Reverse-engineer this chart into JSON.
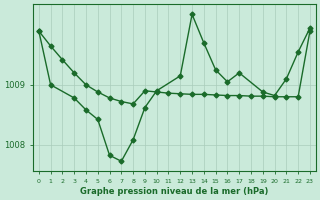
{
  "xlabel": "Graphe pression niveau de la mer (hPa)",
  "x_ticks": [
    0,
    1,
    2,
    3,
    4,
    5,
    6,
    7,
    8,
    9,
    10,
    11,
    12,
    13,
    14,
    15,
    16,
    17,
    18,
    19,
    20,
    21,
    22,
    23
  ],
  "ylim": [
    1007.55,
    1010.35
  ],
  "yticks": [
    1008,
    1009
  ],
  "background_color": "#caeada",
  "plot_bg_color": "#caeada",
  "grid_color": "#aaccbb",
  "line_color": "#1a6b2a",
  "series1_x": [
    0,
    1,
    2,
    3,
    4,
    5,
    6,
    7,
    8,
    9,
    10,
    11,
    12,
    13,
    14,
    15,
    16,
    17,
    18,
    19,
    20,
    21,
    22,
    23
  ],
  "series1_y": [
    1009.9,
    1009.65,
    1009.42,
    1009.2,
    1009.0,
    1008.88,
    1008.78,
    1008.72,
    1008.68,
    1008.9,
    1008.88,
    1008.86,
    1008.85,
    1008.84,
    1008.84,
    1008.83,
    1008.82,
    1008.82,
    1008.81,
    1008.81,
    1008.8,
    1008.8,
    1008.8,
    1009.9
  ],
  "series2_x": [
    0,
    1,
    3,
    4,
    5,
    6,
    7,
    8,
    9,
    10,
    12,
    13,
    14,
    15,
    16,
    17,
    19,
    20,
    21,
    22,
    23
  ],
  "series2_y": [
    1009.9,
    1009.0,
    1008.78,
    1008.58,
    1008.42,
    1007.82,
    1007.72,
    1008.08,
    1008.62,
    1008.9,
    1009.15,
    1010.18,
    1009.7,
    1009.25,
    1009.05,
    1009.2,
    1008.88,
    1008.82,
    1009.1,
    1009.55,
    1009.95
  ],
  "marker": "D",
  "markersize": 2.5,
  "linewidth": 1.0
}
